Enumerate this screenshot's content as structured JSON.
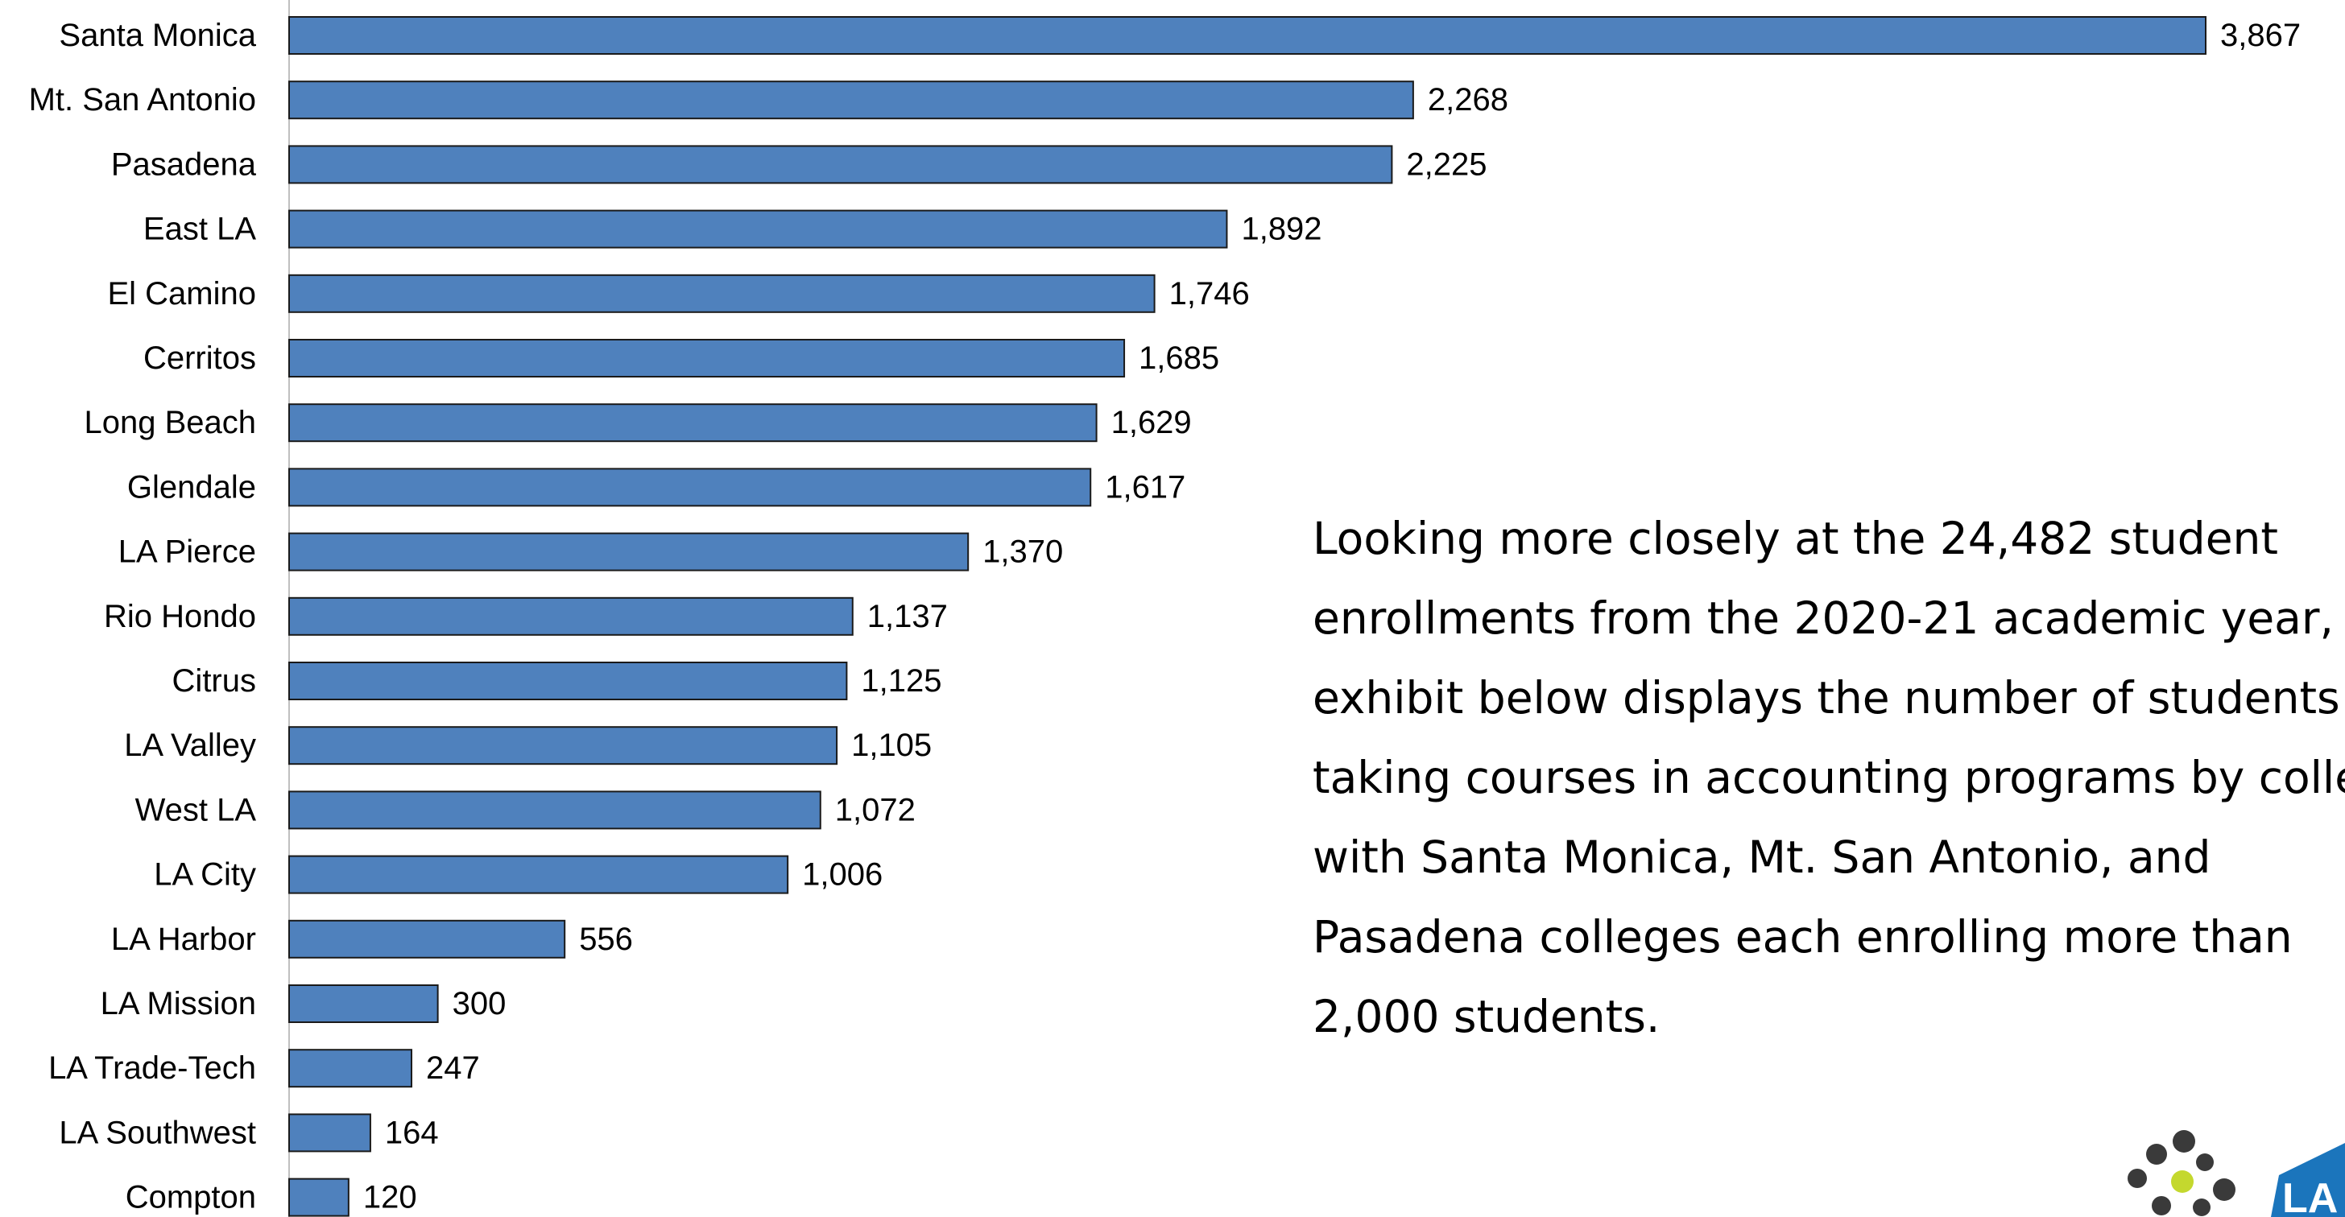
{
  "chart_data": {
    "type": "bar",
    "orientation": "horizontal",
    "categories": [
      "Santa Monica",
      "Mt. San Antonio",
      "Pasadena",
      "East LA",
      "El Camino",
      "Cerritos",
      "Long Beach",
      "Glendale",
      "LA Pierce",
      "Rio Hondo",
      "Citrus",
      "LA Valley",
      "West LA",
      "LA City",
      "LA Harbor",
      "LA Mission",
      "LA Trade-Tech",
      "LA Southwest",
      "Compton"
    ],
    "values": [
      3867,
      2268,
      2225,
      1892,
      1746,
      1685,
      1629,
      1617,
      1370,
      1137,
      1125,
      1105,
      1072,
      1006,
      556,
      300,
      247,
      164,
      120
    ],
    "data_labels": [
      "3,867",
      "2,268",
      "2,225",
      "1,892",
      "1,746",
      "1,685",
      "1,629",
      "1,617",
      "1,370",
      "1,137",
      "1,125",
      "1,105",
      "1,072",
      "1,006",
      "556",
      "300",
      "247",
      "164",
      "120"
    ],
    "bar_color": "#4F81BD",
    "bar_border_color": "#1a1a1a",
    "grid": false,
    "legend": "none"
  },
  "narrative": {
    "text": "Looking more closely at the 24,482 student\nenrollments from the 2020-21 academic year,\nexhibit below displays the number of students\ntaking courses in accounting programs by college,\nwith Santa Monica, Mt. San Antonio, and\nPasadena colleges each enrolling more than\n2,000 students."
  },
  "logo": {
    "dot_color": "#3a3a3a",
    "accent_dot_color": "#C4D82E",
    "mark_color": "#1B75BC",
    "mark_text": "LA"
  }
}
